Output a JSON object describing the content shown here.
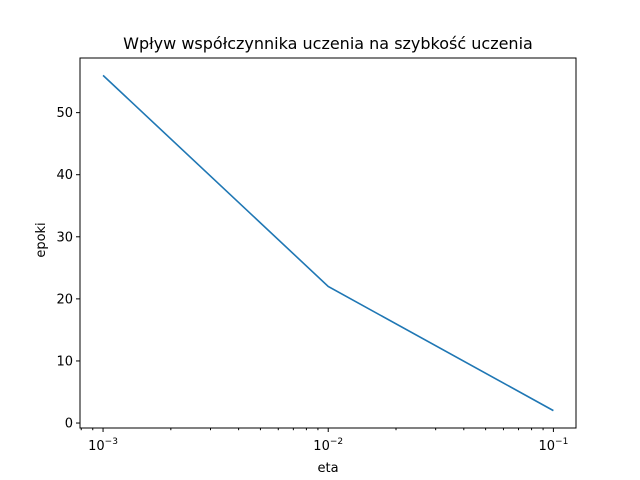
{
  "chart_data": {
    "type": "line",
    "title": "Wpływ współczynnika uczenia na szybkość uczenia",
    "xlabel": "eta",
    "ylabel": "epoki",
    "xscale": "log",
    "xlim": [
      0.00079,
      0.126
    ],
    "ylim": [
      -0.8,
      58.8
    ],
    "grid": false,
    "xticks": [
      {
        "value": 0.001,
        "base": "10",
        "exp": "−3"
      },
      {
        "value": 0.01,
        "base": "10",
        "exp": "−2"
      },
      {
        "value": 0.1,
        "base": "10",
        "exp": "−1"
      }
    ],
    "yticks": [
      {
        "value": 0,
        "label": "0"
      },
      {
        "value": 10,
        "label": "10"
      },
      {
        "value": 20,
        "label": "20"
      },
      {
        "value": 30,
        "label": "30"
      },
      {
        "value": 40,
        "label": "40"
      },
      {
        "value": 50,
        "label": "50"
      }
    ],
    "series": [
      {
        "color": "#1f77b4",
        "x": [
          0.001,
          0.01,
          0.1
        ],
        "y": [
          56,
          22,
          2
        ]
      }
    ]
  }
}
